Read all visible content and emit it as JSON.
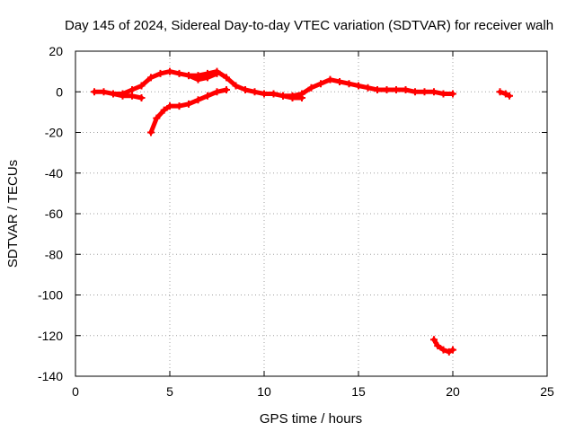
{
  "chart_data": {
    "type": "scatter",
    "title": "Day 145 of 2024, Sidereal Day-to-day VTEC variation (SDTVAR) for receiver walh",
    "xlabel": "GPS time / hours",
    "ylabel": "SDTVAR / TECUs",
    "xlim": [
      0,
      25
    ],
    "ylim": [
      -140,
      20
    ],
    "xticks": [
      0,
      5,
      10,
      15,
      20,
      25
    ],
    "yticks": [
      20,
      0,
      -20,
      -40,
      -60,
      -80,
      -100,
      -120,
      -140
    ],
    "grid": true,
    "marker": "plus",
    "color": "#ff0000",
    "series": [
      {
        "name": "segment-1",
        "x": [
          1.0,
          1.5,
          2.0,
          2.5,
          3.0,
          3.5,
          4.0,
          4.5,
          5.0,
          5.5,
          6.0,
          6.5,
          7.0,
          7.5,
          8.0,
          8.5,
          9.0,
          9.5,
          10.0,
          10.5,
          11.0,
          11.5,
          12.0,
          12.5,
          13.0,
          13.5,
          14.0,
          14.5,
          15.0,
          15.5,
          16.0,
          16.5,
          17.0,
          17.5,
          18.0,
          18.5,
          19.0,
          19.5,
          20.0
        ],
        "y": [
          0,
          0,
          -1,
          -1,
          1,
          3,
          7,
          9,
          10,
          9,
          8,
          8,
          9,
          10,
          7,
          3,
          1,
          0,
          -1,
          -1,
          -2,
          -2,
          -1,
          2,
          4,
          6,
          5,
          4,
          3,
          2,
          1,
          1,
          1,
          1,
          0,
          0,
          0,
          -1,
          -1
        ]
      },
      {
        "name": "segment-2",
        "x": [
          2.0,
          2.5,
          3.0,
          3.5
        ],
        "y": [
          -1,
          -2,
          -2,
          -3
        ]
      },
      {
        "name": "segment-3",
        "x": [
          6.0,
          6.5,
          7.0,
          7.5
        ],
        "y": [
          8,
          6,
          7,
          9
        ]
      },
      {
        "name": "segment-4",
        "x": [
          11.0,
          11.5,
          12.0
        ],
        "y": [
          -2,
          -3,
          -3
        ]
      },
      {
        "name": "segment-5",
        "x": [
          4.0,
          4.3,
          4.7,
          5.0,
          5.5,
          6.0,
          6.5,
          7.0,
          7.5,
          8.0
        ],
        "y": [
          -20,
          -13,
          -9,
          -7,
          -7,
          -6,
          -4,
          -2,
          0,
          1
        ]
      },
      {
        "name": "segment-6",
        "x": [
          19.0,
          19.2,
          19.5,
          19.8,
          20.0
        ],
        "y": [
          -122,
          -125,
          -127,
          -128,
          -127
        ]
      },
      {
        "name": "segment-7",
        "x": [
          22.5,
          22.8,
          23.0
        ],
        "y": [
          0,
          -1,
          -2
        ]
      }
    ]
  }
}
